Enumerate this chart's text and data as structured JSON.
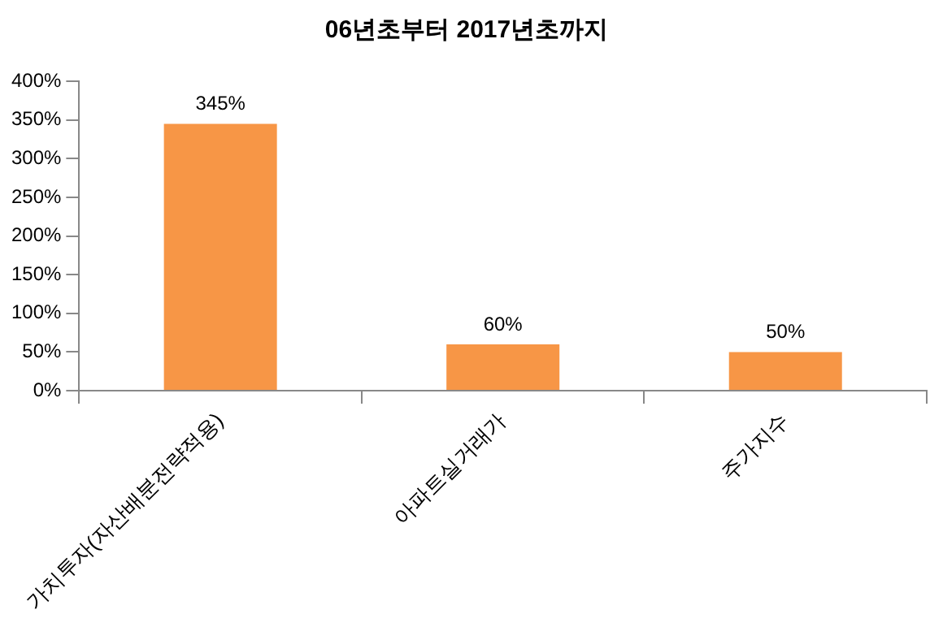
{
  "chart_data": {
    "type": "bar",
    "title": "06년초부터 2017년초까지",
    "categories": [
      "가치투자(자산배분전략적용)",
      "아파트실거래가",
      "주가지수"
    ],
    "values": [
      345,
      60,
      50
    ],
    "color": "#f79646",
    "value_labels": [
      "345%",
      "60%",
      "50%"
    ],
    "ylim": [
      0,
      400
    ],
    "yticks": [
      {
        "value": 0,
        "label": "0%"
      },
      {
        "value": 50,
        "label": "50%"
      },
      {
        "value": 100,
        "label": "100%"
      },
      {
        "value": 150,
        "label": "150%"
      },
      {
        "value": 200,
        "label": "200%"
      },
      {
        "value": 250,
        "label": "250%"
      },
      {
        "value": 300,
        "label": "300%"
      },
      {
        "value": 350,
        "label": "350%"
      },
      {
        "value": 400,
        "label": "400%"
      }
    ],
    "grid": false,
    "legend": false
  }
}
